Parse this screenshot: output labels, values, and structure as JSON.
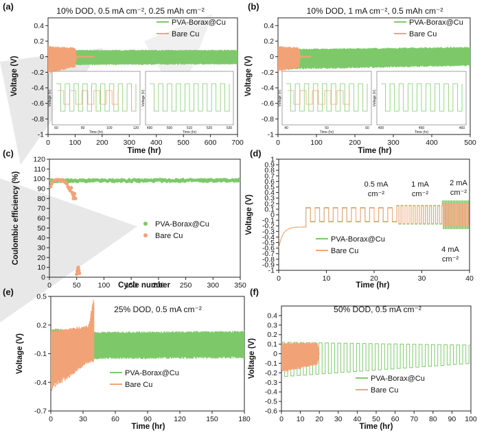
{
  "colors": {
    "pva": "#7dc96a",
    "bare": "#f2a277",
    "axis": "#222222",
    "panel_bg": "#ffffff"
  },
  "legend": {
    "pva": "PVA-Borax@Cu",
    "bare": "Bare Cu"
  },
  "chart_data": [
    {
      "id": "a",
      "type": "line",
      "label": "(a)",
      "title": "10% DOD, 0.5 mA cm⁻², 0.25 mAh cm⁻²",
      "xlabel": "Time (hr)",
      "ylabel": "Voltage (V)",
      "xlim": [
        0,
        700
      ],
      "ylim": [
        -1,
        0.5
      ],
      "xticks": [
        "0",
        "100",
        "200",
        "300",
        "400",
        "500",
        "600",
        "700"
      ],
      "yticks": [
        "-1",
        "-0.8",
        "-0.6",
        "-0.4",
        "-0.2",
        "0",
        "0.2",
        "0.4"
      ],
      "series": [
        {
          "name": "PVA-Borax@Cu",
          "kind": "band",
          "x": [
            0,
            100,
            700
          ],
          "upper": [
            0.1,
            0.09,
            0.09
          ],
          "lower": [
            -0.14,
            -0.11,
            -0.1
          ]
        },
        {
          "name": "Bare Cu",
          "kind": "band",
          "x": [
            0,
            100,
            105,
            170
          ],
          "upper": [
            0.14,
            0.12,
            0.01,
            0.01
          ],
          "lower": [
            -0.22,
            -0.14,
            -0.01,
            -0.01
          ]
        }
      ],
      "insets": [
        {
          "xticks": [
            "60",
            "80",
            "100",
            "120"
          ],
          "xlabel": "Time (hr)",
          "ylabel": "Voltage (V)"
        },
        {
          "xticks": [
            "490",
            "500",
            "510",
            "520",
            "530"
          ],
          "xlabel": "Time (hr)",
          "ylabel": "Voltage (V)"
        }
      ]
    },
    {
      "id": "b",
      "type": "line",
      "label": "(b)",
      "title": "10% DOD, 1 mA cm⁻², 0.5 mAh cm⁻²",
      "xlabel": "Time (hr)",
      "ylabel": "Voltage (V)",
      "xlim": [
        0,
        500
      ],
      "ylim": [
        -1,
        0.5
      ],
      "xticks": [
        "0",
        "100",
        "200",
        "300",
        "400",
        "500"
      ],
      "yticks": [
        "-1",
        "-0.8",
        "-0.6",
        "-0.4",
        "-0.2",
        "0",
        "0.2",
        "0.4"
      ],
      "series": [
        {
          "name": "PVA-Borax@Cu",
          "kind": "band",
          "x": [
            0,
            500
          ],
          "upper": [
            0.1,
            0.13
          ],
          "lower": [
            -0.17,
            -0.12
          ]
        },
        {
          "name": "Bare Cu",
          "kind": "band",
          "x": [
            0,
            55,
            58,
            85
          ],
          "upper": [
            0.14,
            0.12,
            0.01,
            0.01
          ],
          "lower": [
            -0.2,
            -0.15,
            -0.01,
            -0.01
          ]
        }
      ],
      "insets": [
        {
          "xticks": [
            "40",
            "50",
            "60"
          ],
          "xlabel": "Time (hr)",
          "ylabel": "Voltage (V)"
        },
        {
          "xticks": [
            "400",
            "450",
            "460"
          ],
          "xlabel": "Time (hr)",
          "ylabel": "Voltage (V)"
        }
      ]
    },
    {
      "id": "c",
      "type": "scatter",
      "label": "(c)",
      "title": "",
      "xlabel": "Cycle number",
      "ylabel": "Coulombic efficiency (%)",
      "xlim": [
        0,
        350
      ],
      "ylim": [
        0,
        120
      ],
      "xticks": [
        "0",
        "50",
        "100",
        "150",
        "200",
        "250",
        "300",
        "350"
      ],
      "yticks": [
        "0",
        "10",
        "20",
        "30",
        "40",
        "50",
        "60",
        "70",
        "80",
        "90",
        "100",
        "110",
        "120"
      ],
      "series": [
        {
          "name": "PVA-Borax@Cu",
          "kind": "band_mean",
          "x": [
            0,
            350
          ],
          "mean": [
            98,
            98.5
          ],
          "spread": 2.5
        },
        {
          "name": "Bare Cu",
          "kind": "points",
          "x": [
            2,
            4,
            6,
            8,
            10,
            12,
            14,
            16,
            18,
            20,
            22,
            24,
            26,
            28,
            30,
            32,
            34,
            36,
            38,
            40,
            42,
            43,
            44,
            45,
            46,
            48,
            50,
            51,
            52,
            53,
            54,
            55
          ],
          "y": [
            92,
            95,
            97,
            98,
            98.5,
            99,
            99,
            99,
            99,
            98,
            99,
            98,
            98,
            97,
            96,
            95,
            92,
            90,
            88,
            91,
            86,
            84,
            80,
            82,
            85,
            80,
            3,
            6,
            8,
            10,
            7,
            4
          ]
        }
      ]
    },
    {
      "id": "d",
      "type": "line",
      "label": "(d)",
      "title": "",
      "xlabel": "Time (hr)",
      "ylabel": "Voltage (V)",
      "xlim": [
        0,
        42
      ],
      "ylim": [
        -1,
        1
      ],
      "xticks": [
        "0",
        "10",
        "20",
        "30",
        "40"
      ],
      "yticks": [
        "-1",
        "-0.9",
        "-0.8",
        "-0.7",
        "-0.6",
        "-0.5",
        "-0.4",
        "-0.3",
        "-0.2",
        "-0.1",
        "0",
        "0.1",
        "0.2",
        "0.3",
        "0.4",
        "0.5",
        "0.6",
        "0.7",
        "0.8",
        "0.9",
        "1"
      ],
      "annotations": [
        "0.5 mA",
        "cm⁻²",
        "1 mA",
        "cm⁻²",
        "2 mA",
        "cm⁻²",
        "4 mA",
        "cm⁻²"
      ],
      "series": [
        {
          "name": "PVA-Borax@Cu",
          "kind": "rate_steps",
          "segments": [
            {
              "t": [
                0,
                6
              ],
              "amp": 0.0
            },
            {
              "t": [
                6,
                26
              ],
              "amp": 0.13
            },
            {
              "t": [
                26,
                36
              ],
              "amp": 0.17
            },
            {
              "t": [
                36,
                42
              ],
              "amp": 0.25
            }
          ]
        },
        {
          "name": "Bare Cu",
          "kind": "rate_steps",
          "segments": [
            {
              "t": [
                0,
                6
              ],
              "amp": 0.0
            },
            {
              "t": [
                6,
                26
              ],
              "amp": 0.12
            },
            {
              "t": [
                26,
                36
              ],
              "amp": 0.16
            },
            {
              "t": [
                36,
                42
              ],
              "amp": 0.2
            }
          ]
        }
      ]
    },
    {
      "id": "e",
      "type": "line",
      "label": "(e)",
      "title": "25% DOD, 0.5 mA cm⁻²",
      "xlabel": "Time (hr)",
      "ylabel": "Voltage (V)",
      "xlim": [
        0,
        180
      ],
      "ylim": [
        -0.7,
        0.5
      ],
      "xticks": [
        "0",
        "30",
        "60",
        "90",
        "120",
        "150",
        "180"
      ],
      "yticks": [
        "-0.7",
        "-0.4",
        "-0.1",
        "0.2",
        "0.5"
      ],
      "series": [
        {
          "name": "PVA-Borax@Cu",
          "kind": "band",
          "x": [
            0,
            40,
            180
          ],
          "upper": [
            0.17,
            0.13,
            0.14
          ],
          "lower": [
            -0.3,
            -0.16,
            -0.15
          ]
        },
        {
          "name": "Bare Cu",
          "kind": "band",
          "x": [
            0,
            35,
            40
          ],
          "upper": [
            0.14,
            0.2,
            0.5
          ],
          "lower": [
            -0.5,
            -0.2,
            -0.2
          ]
        }
      ]
    },
    {
      "id": "f",
      "type": "line",
      "label": "(f)",
      "title": "50% DOD, 0.5 mA cm⁻²",
      "xlabel": "Time (hr)",
      "ylabel": "Voltage (V)",
      "xlim": [
        0,
        100
      ],
      "ylim": [
        -0.6,
        0.5
      ],
      "xticks": [
        "0",
        "10",
        "20",
        "30",
        "40",
        "50",
        "60",
        "70",
        "80",
        "90",
        "100"
      ],
      "yticks": [
        "-0.6",
        "-0.5",
        "-0.4",
        "-0.3",
        "-0.2",
        "-0.1",
        "0",
        "0.1",
        "0.2",
        "0.3",
        "0.4"
      ],
      "series": [
        {
          "name": "PVA-Borax@Cu",
          "kind": "square",
          "period": 3.3,
          "x": [
            0,
            100
          ],
          "upper": [
            0.12,
            0.09
          ],
          "lower": [
            -0.24,
            -0.1
          ]
        },
        {
          "name": "Bare Cu",
          "kind": "band",
          "x": [
            0,
            19,
            20,
            40
          ],
          "upper": [
            0.12,
            0.12,
            0.0,
            0.0
          ],
          "lower": [
            -0.2,
            -0.12,
            -0.0,
            -0.0
          ]
        }
      ]
    }
  ]
}
